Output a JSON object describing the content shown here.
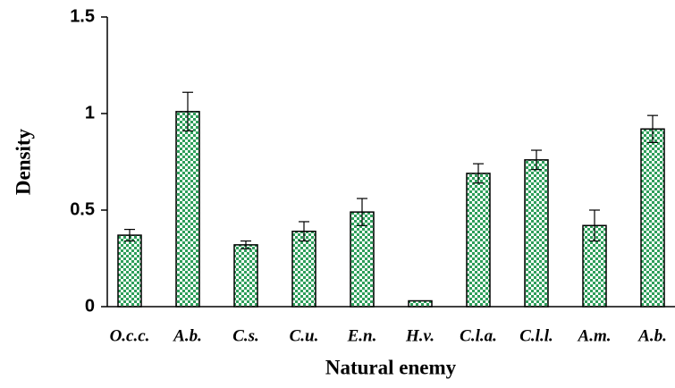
{
  "chart_data": {
    "type": "bar",
    "x_label": "Natural enemy",
    "y_label": "Density",
    "categories": [
      "O.c.c.",
      "A.b.",
      "C.s.",
      "C.u.",
      "E.n.",
      "H.v.",
      "C.l.a.",
      "C.l.l.",
      "A.m.",
      "A.b."
    ],
    "values": [
      0.37,
      1.01,
      0.32,
      0.39,
      0.49,
      0.03,
      0.69,
      0.76,
      0.42,
      0.92
    ],
    "errors": [
      0.03,
      0.1,
      0.02,
      0.05,
      0.07,
      0,
      0.05,
      0.05,
      0.08,
      0.07
    ],
    "color": "#2e9e5a",
    "ylim": [
      0,
      1.5
    ],
    "yticks": [
      0,
      0.5,
      1,
      1.5
    ]
  }
}
